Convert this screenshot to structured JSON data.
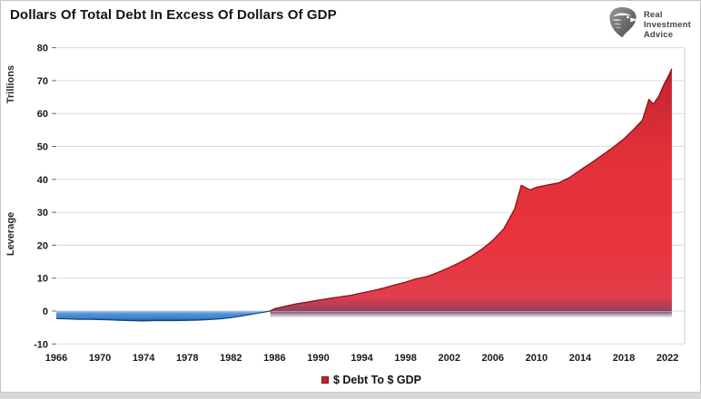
{
  "title": "Dollars Of Total Debt In Excess Of Dollars Of GDP",
  "logo": {
    "brand_lines": [
      "Real",
      "Investment",
      "Advice"
    ]
  },
  "chart_data": {
    "type": "area",
    "title": "Dollars Of Total Debt In Excess Of Dollars Of GDP",
    "unit_label": "Trillions",
    "axis_label": "Leverage",
    "ylim": [
      -10,
      80
    ],
    "y_ticks": [
      80,
      70,
      60,
      50,
      40,
      30,
      20,
      10,
      0,
      -10
    ],
    "x_ticks": [
      1966,
      1970,
      1974,
      1978,
      1982,
      1986,
      1990,
      1994,
      1998,
      2002,
      2006,
      2010,
      2014,
      2018,
      2022
    ],
    "xlim": [
      1966,
      2022.6
    ],
    "grid": "horizontal",
    "legend": {
      "label": "$ Debt To $ GDP",
      "marker_color": "#c1222b",
      "position": "bottom"
    },
    "colors": {
      "positive_fill": "#ea343d",
      "positive_edge": "#8e1019",
      "negative_fill": "#3f86cc",
      "negative_edge": "#16407e",
      "baseline_shadow": "#6a4363",
      "gridline": "#dadada"
    },
    "series": [
      {
        "name": "debt-gdp-gap-negative",
        "points": [
          [
            1966,
            -2.3
          ],
          [
            1967,
            -2.4
          ],
          [
            1968,
            -2.5
          ],
          [
            1969,
            -2.5
          ],
          [
            1970,
            -2.6
          ],
          [
            1971,
            -2.7
          ],
          [
            1972,
            -2.85
          ],
          [
            1973,
            -2.95
          ],
          [
            1974,
            -3.0
          ],
          [
            1975,
            -2.9
          ],
          [
            1976,
            -2.9
          ],
          [
            1977,
            -2.9
          ],
          [
            1978,
            -2.85
          ],
          [
            1979,
            -2.75
          ],
          [
            1980,
            -2.6
          ],
          [
            1981,
            -2.4
          ],
          [
            1982,
            -2.0
          ],
          [
            1983,
            -1.5
          ],
          [
            1984,
            -0.9
          ],
          [
            1985,
            -0.35
          ],
          [
            1985.6,
            0
          ]
        ]
      },
      {
        "name": "$ Debt To $ GDP",
        "points": [
          [
            1985.6,
            0
          ],
          [
            1986,
            0.7
          ],
          [
            1987,
            1.5
          ],
          [
            1988,
            2.2
          ],
          [
            1989,
            2.7
          ],
          [
            1990,
            3.3
          ],
          [
            1991,
            3.8
          ],
          [
            1992,
            4.3
          ],
          [
            1993,
            4.8
          ],
          [
            1994,
            5.5
          ],
          [
            1995,
            6.2
          ],
          [
            1996,
            7.0
          ],
          [
            1997,
            7.9
          ],
          [
            1998,
            8.8
          ],
          [
            1999,
            9.8
          ],
          [
            2000,
            10.5
          ],
          [
            2001,
            11.8
          ],
          [
            2002,
            13.2
          ],
          [
            2003,
            14.8
          ],
          [
            2004,
            16.6
          ],
          [
            2005,
            18.8
          ],
          [
            2006,
            21.5
          ],
          [
            2007,
            25.0
          ],
          [
            2008,
            31.0
          ],
          [
            2008.6,
            38.2
          ],
          [
            2009.4,
            36.8
          ],
          [
            2010,
            37.6
          ],
          [
            2011,
            38.3
          ],
          [
            2012,
            38.9
          ],
          [
            2013,
            40.5
          ],
          [
            2014,
            42.8
          ],
          [
            2015,
            45.0
          ],
          [
            2016,
            47.3
          ],
          [
            2017,
            49.7
          ],
          [
            2018,
            52.3
          ],
          [
            2019,
            55.5
          ],
          [
            2019.7,
            58.0
          ],
          [
            2020.3,
            64.3
          ],
          [
            2020.7,
            62.9
          ],
          [
            2021.2,
            65.2
          ],
          [
            2021.7,
            69.0
          ],
          [
            2022.1,
            71.5
          ],
          [
            2022.4,
            73.6
          ]
        ]
      }
    ]
  }
}
